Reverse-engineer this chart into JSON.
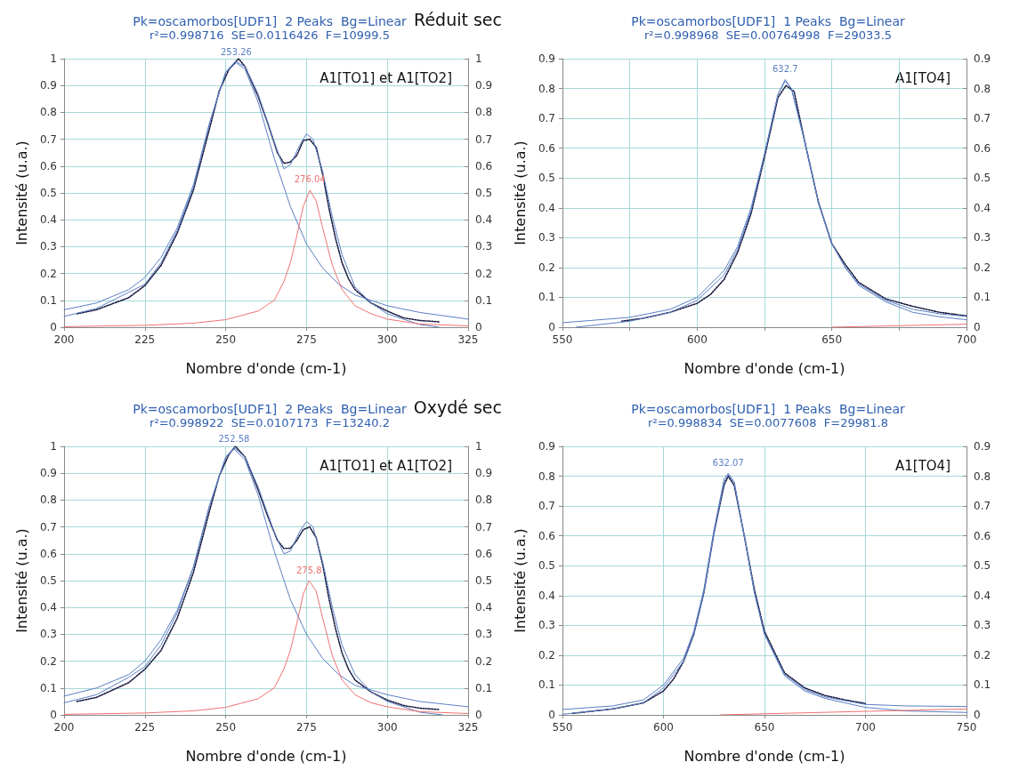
{
  "chart_data": [
    {
      "type": "line",
      "title": "Pk=oscamorbos[UDF1]  2 Peaks  Bg=Linear",
      "subtitle": "r²=0.998716  SE=0.0116426  F=10999.5",
      "xlabel": "Nombre d'onde (cm-1)",
      "ylabel": "Intensité (u.a.)",
      "annotations": [
        "Réduit sec",
        "A1[TO1] et A1[TO2]",
        {
          "text": "253.26",
          "x": 253.26,
          "y": 0.985
        },
        {
          "text": "276.04",
          "x": 276.04,
          "y": 0.51
        }
      ],
      "xlim": [
        200,
        325
      ],
      "xticks": [
        200,
        225,
        250,
        275,
        300,
        325
      ],
      "ylim": [
        0,
        1
      ],
      "yticks": [
        0,
        0.1,
        0.2,
        0.3,
        0.4,
        0.5,
        0.6,
        0.7,
        0.8,
        0.9,
        1
      ],
      "y2lim": [
        0,
        1
      ],
      "y2ticks": [
        0,
        0.1,
        0.2,
        0.3,
        0.4,
        0.5,
        0.6,
        0.7,
        0.8,
        0.9,
        1
      ],
      "grid": true,
      "marker": "none",
      "line_style": "solid",
      "series": [
        {
          "color": "#1a1a40",
          "line_style": "dotted",
          "x": [
            204,
            210,
            220,
            225,
            230,
            235,
            240,
            245,
            248,
            251,
            254,
            256,
            260,
            263,
            266,
            268,
            270,
            272,
            274,
            276,
            278,
            280,
            282,
            284,
            286,
            288,
            290,
            295,
            300,
            305,
            310,
            316
          ],
          "values": [
            0.05,
            0.065,
            0.11,
            0.155,
            0.23,
            0.35,
            0.51,
            0.74,
            0.88,
            0.96,
            1,
            0.97,
            0.86,
            0.76,
            0.65,
            0.61,
            0.615,
            0.64,
            0.695,
            0.7,
            0.67,
            0.57,
            0.44,
            0.33,
            0.24,
            0.18,
            0.14,
            0.09,
            0.06,
            0.035,
            0.025,
            0.02
          ]
        },
        {
          "color": "#5b7fc4",
          "x": [
            200,
            210,
            220,
            225,
            230,
            235,
            240,
            245,
            250,
            253,
            256,
            260,
            265,
            268,
            270,
            273,
            275,
            277,
            280,
            283,
            286,
            290,
            295,
            300,
            305,
            310,
            316
          ],
          "values": [
            0.04,
            0.07,
            0.13,
            0.16,
            0.24,
            0.36,
            0.52,
            0.76,
            0.95,
            0.99,
            0.97,
            0.87,
            0.69,
            0.59,
            0.605,
            0.68,
            0.72,
            0.7,
            0.58,
            0.41,
            0.27,
            0.15,
            0.09,
            0.05,
            0.03,
            0.01,
            0
          ]
        },
        {
          "color": "#5b7fc4",
          "x": [
            200,
            210,
            220,
            225,
            230,
            235,
            240,
            245,
            250,
            253.26,
            256,
            260,
            265,
            270,
            275,
            280,
            285,
            290,
            300,
            310,
            325
          ],
          "values": [
            0.065,
            0.09,
            0.14,
            0.185,
            0.26,
            0.37,
            0.53,
            0.76,
            0.95,
            0.985,
            0.96,
            0.84,
            0.63,
            0.45,
            0.31,
            0.22,
            0.16,
            0.12,
            0.08,
            0.055,
            0.03
          ]
        },
        {
          "color": "#f07070",
          "x": [
            200,
            225,
            240,
            250,
            260,
            265,
            268,
            270,
            272,
            274,
            276.04,
            278,
            280,
            283,
            286,
            290,
            295,
            300,
            310,
            325
          ],
          "values": [
            0.002,
            0.007,
            0.015,
            0.028,
            0.06,
            0.1,
            0.17,
            0.24,
            0.34,
            0.45,
            0.51,
            0.47,
            0.37,
            0.23,
            0.14,
            0.08,
            0.05,
            0.03,
            0.012,
            0.005
          ]
        }
      ]
    },
    {
      "type": "line",
      "title": "Pk=oscamorbos[UDF1]  1 Peaks  Bg=Linear",
      "subtitle": "r²=0.998968  SE=0.00764998  F=29033.5",
      "xlabel": "Nombre d'onde (cm-1)",
      "ylabel": "Intensité (u.a.)",
      "annotations": [
        "A1[TO4]",
        {
          "text": "632.7",
          "x": 632.7,
          "y": 0.83
        }
      ],
      "xlim": [
        550,
        700
      ],
      "xticks": [
        550,
        {
          "value": 575,
          "label": null
        },
        600,
        {
          "value": 625,
          "label": null
        },
        650,
        {
          "value": 675,
          "label": null
        },
        700
      ],
      "ylim": [
        0,
        0.9
      ],
      "yticks": [
        0,
        0.1,
        0.2,
        0.3,
        0.4,
        0.5,
        0.6,
        0.7,
        0.8,
        0.9
      ],
      "y2lim": [
        0,
        0.9
      ],
      "y2ticks": [
        0,
        0.1,
        0.2,
        0.3,
        0.4,
        0.5,
        0.6,
        0.7,
        0.8,
        0.9
      ],
      "grid": true,
      "marker": "none",
      "line_style": "solid",
      "series": [
        {
          "color": "#1a1a40",
          "line_style": "dotted",
          "x": [
            572,
            580,
            590,
            600,
            605,
            610,
            615,
            620,
            625,
            630,
            633,
            636,
            640,
            645,
            650,
            655,
            660,
            670,
            680,
            690,
            700
          ],
          "values": [
            0.02,
            0.03,
            0.05,
            0.08,
            0.11,
            0.16,
            0.25,
            0.38,
            0.57,
            0.77,
            0.81,
            0.79,
            0.62,
            0.42,
            0.28,
            0.21,
            0.15,
            0.095,
            0.07,
            0.05,
            0.038
          ]
        },
        {
          "color": "#5b7fc4",
          "x": [
            555,
            575,
            590,
            600,
            610,
            615,
            620,
            625,
            630,
            632.7,
            635,
            640,
            645,
            650,
            655,
            660,
            670,
            680,
            690,
            700
          ],
          "values": [
            0,
            0.02,
            0.05,
            0.09,
            0.175,
            0.26,
            0.39,
            0.58,
            0.78,
            0.825,
            0.8,
            0.62,
            0.42,
            0.28,
            0.2,
            0.145,
            0.09,
            0.06,
            0.045,
            0.036
          ]
        },
        {
          "color": "#5b7fc4",
          "x": [
            550,
            575,
            590,
            600,
            610,
            615,
            620,
            625,
            630,
            632.7,
            635,
            640,
            645,
            650,
            655,
            660,
            670,
            680,
            690,
            700
          ],
          "values": [
            0.015,
            0.033,
            0.06,
            0.1,
            0.19,
            0.27,
            0.4,
            0.58,
            0.78,
            0.83,
            0.8,
            0.62,
            0.42,
            0.28,
            0.2,
            0.14,
            0.085,
            0.05,
            0.035,
            0.025
          ]
        },
        {
          "color": "#f07070",
          "x": [
            650,
            700
          ],
          "values": [
            0,
            0.01
          ]
        }
      ]
    },
    {
      "type": "line",
      "title": "Pk=oscamorbos[UDF1]  2 Peaks  Bg=Linear",
      "subtitle": "r²=0.998922  SE=0.0107173  F=13240.2",
      "xlabel": "Nombre d'onde (cm-1)",
      "ylabel": "Intensité (u.a.)",
      "annotations": [
        "Oxydé sec",
        "A1[TO1] et A1[TO2]",
        {
          "text": "252.58",
          "x": 252.58,
          "y": 0.99
        },
        {
          "text": "275.8",
          "x": 275.8,
          "y": 0.5
        }
      ],
      "xlim": [
        200,
        325
      ],
      "xticks": [
        200,
        225,
        250,
        275,
        300,
        325
      ],
      "ylim": [
        0,
        1
      ],
      "yticks": [
        0,
        0.1,
        0.2,
        0.3,
        0.4,
        0.5,
        0.6,
        0.7,
        0.8,
        0.9,
        1
      ],
      "y2lim": [
        0,
        1
      ],
      "y2ticks": [
        0,
        0.1,
        0.2,
        0.3,
        0.4,
        0.5,
        0.6,
        0.7,
        0.8,
        0.9,
        1
      ],
      "grid": true,
      "marker": "none",
      "line_style": "solid",
      "series": [
        {
          "color": "#1a1a40",
          "line_style": "dotted",
          "x": [
            204,
            210,
            220,
            225,
            230,
            235,
            240,
            245,
            248,
            251,
            253,
            256,
            260,
            263,
            266,
            268,
            270,
            272,
            274,
            276,
            278,
            280,
            282,
            284,
            286,
            288,
            290,
            295,
            300,
            305,
            310,
            316
          ],
          "values": [
            0.05,
            0.065,
            0.12,
            0.17,
            0.24,
            0.36,
            0.53,
            0.76,
            0.89,
            0.97,
            1,
            0.96,
            0.84,
            0.74,
            0.65,
            0.62,
            0.62,
            0.65,
            0.69,
            0.7,
            0.66,
            0.56,
            0.43,
            0.32,
            0.23,
            0.17,
            0.13,
            0.085,
            0.055,
            0.035,
            0.025,
            0.02
          ]
        },
        {
          "color": "#5b7fc4",
          "x": [
            200,
            210,
            220,
            225,
            230,
            235,
            240,
            245,
            250,
            252.6,
            256,
            260,
            265,
            268,
            270,
            273,
            275,
            277,
            280,
            283,
            286,
            290,
            295,
            300,
            305,
            310,
            317
          ],
          "values": [
            0.045,
            0.075,
            0.14,
            0.18,
            0.26,
            0.38,
            0.55,
            0.78,
            0.96,
            0.995,
            0.96,
            0.85,
            0.68,
            0.6,
            0.61,
            0.685,
            0.72,
            0.7,
            0.57,
            0.4,
            0.26,
            0.15,
            0.085,
            0.05,
            0.03,
            0.01,
            0
          ]
        },
        {
          "color": "#5b7fc4",
          "x": [
            200,
            210,
            220,
            225,
            230,
            235,
            240,
            245,
            250,
            252.58,
            256,
            260,
            265,
            270,
            275,
            280,
            285,
            290,
            300,
            310,
            325
          ],
          "values": [
            0.07,
            0.1,
            0.15,
            0.2,
            0.28,
            0.39,
            0.55,
            0.78,
            0.96,
            0.99,
            0.95,
            0.82,
            0.61,
            0.43,
            0.3,
            0.21,
            0.15,
            0.11,
            0.075,
            0.05,
            0.03
          ]
        },
        {
          "color": "#f07070",
          "x": [
            200,
            225,
            240,
            250,
            260,
            265,
            268,
            270,
            272,
            274,
            275.8,
            278,
            280,
            283,
            286,
            290,
            295,
            300,
            310,
            325
          ],
          "values": [
            0.002,
            0.007,
            0.015,
            0.028,
            0.06,
            0.1,
            0.17,
            0.24,
            0.34,
            0.45,
            0.5,
            0.46,
            0.36,
            0.22,
            0.13,
            0.075,
            0.045,
            0.03,
            0.012,
            0.005
          ]
        }
      ]
    },
    {
      "type": "line",
      "title": "Pk=oscamorbos[UDF1]  1 Peaks  Bg=Linear",
      "subtitle": "r²=0.998834  SE=0.0077608  F=29981.8",
      "xlabel": "Nombre d'onde (cm-1)",
      "ylabel": "Intensité (u.a.)",
      "annotations": [
        "A1[TO4]",
        {
          "text": "632.07",
          "x": 632.07,
          "y": 0.81
        }
      ],
      "xlim": [
        550,
        750
      ],
      "xticks": [
        550,
        600,
        650,
        700,
        750
      ],
      "ylim": [
        0,
        0.9
      ],
      "yticks": [
        0,
        0.1,
        0.2,
        0.3,
        0.4,
        0.5,
        0.6,
        0.7,
        0.8,
        0.9
      ],
      "y2lim": [
        0,
        0.9
      ],
      "y2ticks": [
        0,
        0.1,
        0.2,
        0.3,
        0.4,
        0.5,
        0.6,
        0.7,
        0.8,
        0.9
      ],
      "grid": true,
      "marker": "none",
      "line_style": "solid",
      "series": [
        {
          "color": "#1a1a40",
          "line_style": "dotted",
          "x": [
            555,
            575,
            590,
            600,
            605,
            610,
            615,
            620,
            625,
            630,
            632,
            635,
            640,
            645,
            650,
            660,
            670,
            680,
            690,
            700
          ],
          "values": [
            0.005,
            0.02,
            0.04,
            0.08,
            0.12,
            0.18,
            0.27,
            0.41,
            0.61,
            0.77,
            0.8,
            0.77,
            0.6,
            0.42,
            0.28,
            0.14,
            0.09,
            0.065,
            0.05,
            0.038
          ]
        },
        {
          "color": "#5b7fc4",
          "x": [
            550,
            575,
            590,
            600,
            610,
            615,
            620,
            625,
            630,
            632.07,
            635,
            640,
            645,
            650,
            660,
            670,
            680,
            700,
            720,
            750
          ],
          "values": [
            0.002,
            0.02,
            0.04,
            0.09,
            0.18,
            0.27,
            0.41,
            0.61,
            0.78,
            0.805,
            0.78,
            0.6,
            0.41,
            0.27,
            0.135,
            0.085,
            0.06,
            0.035,
            0.03,
            0.028
          ]
        },
        {
          "color": "#5b7fc4",
          "x": [
            550,
            575,
            590,
            600,
            610,
            615,
            620,
            625,
            630,
            632.07,
            635,
            640,
            645,
            650,
            660,
            670,
            680,
            700,
            720,
            750
          ],
          "values": [
            0.018,
            0.03,
            0.05,
            0.1,
            0.19,
            0.28,
            0.42,
            0.62,
            0.79,
            0.81,
            0.78,
            0.6,
            0.41,
            0.27,
            0.13,
            0.08,
            0.055,
            0.025,
            0.013,
            0.008
          ]
        },
        {
          "color": "#f07070",
          "x": [
            628,
            750
          ],
          "values": [
            0,
            0.02
          ]
        }
      ]
    }
  ]
}
